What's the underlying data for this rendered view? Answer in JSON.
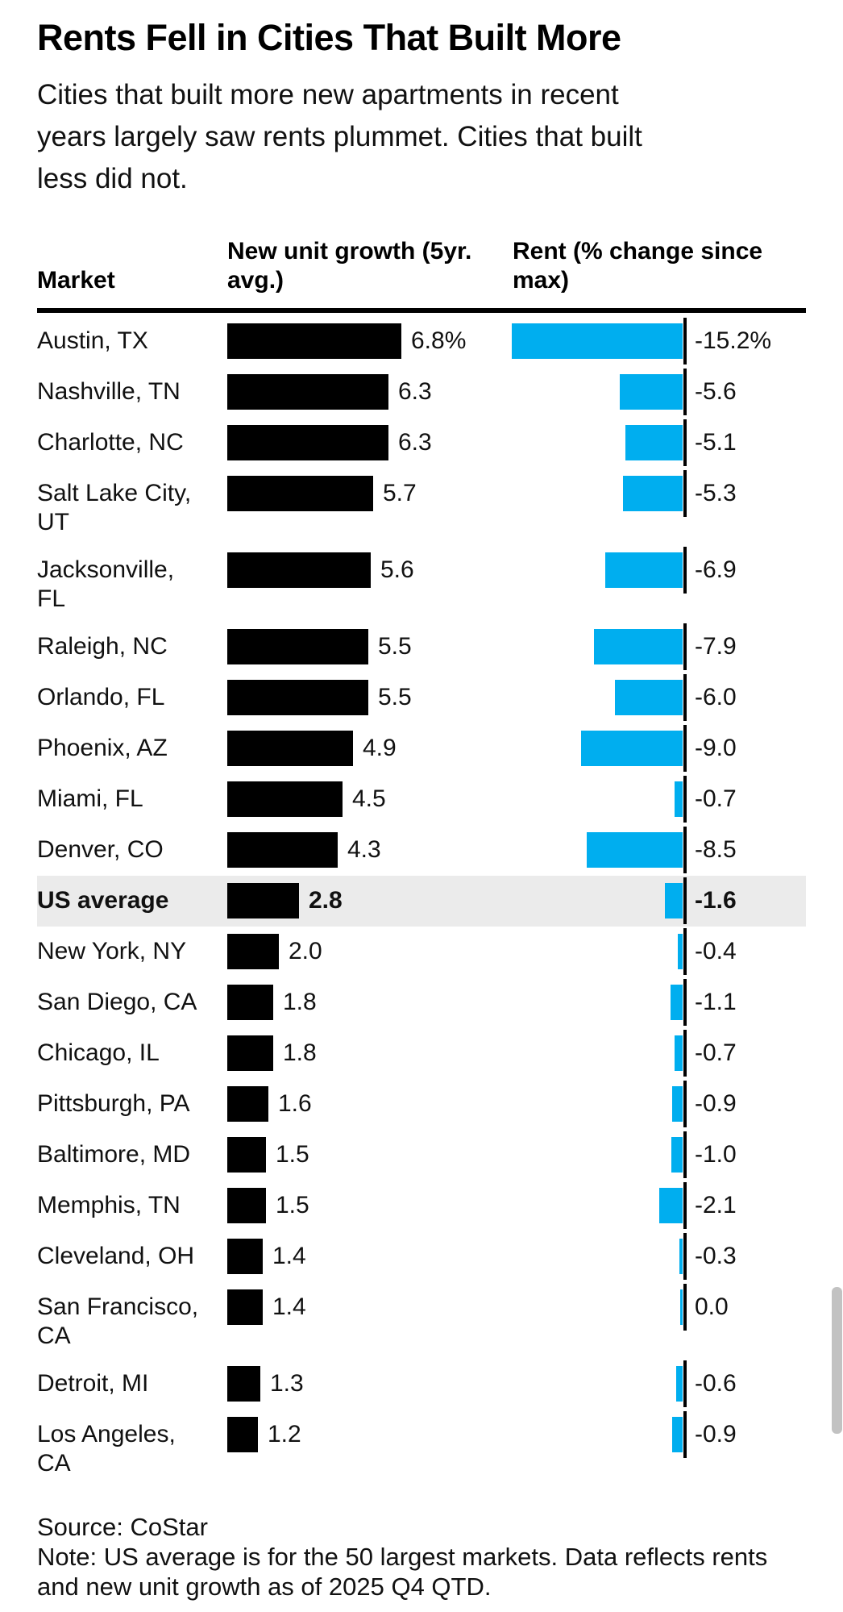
{
  "title": "Rents Fell in Cities That Built More",
  "subtitle": "Cities that built more new apartments in recent\nyears largely saw rents plummet. Cities that built\nless did not.",
  "table": {
    "headers": {
      "market": "Market",
      "growth": "New unit growth (5yr.\navg.)",
      "rent": "Rent (% change since\nmax)"
    }
  },
  "chart_data": {
    "type": "bar",
    "orientation": "horizontal",
    "series": [
      {
        "name": "New unit growth (5yr. avg.)",
        "color": "#000000",
        "unit": "%",
        "axis_range": [
          0,
          6.8
        ]
      },
      {
        "name": "Rent (% change since max)",
        "color": "#00aeef",
        "unit": "%",
        "axis_range": [
          -15.2,
          0
        ]
      }
    ],
    "rows": [
      {
        "market": "Austin, TX",
        "growth": 6.8,
        "growth_label": "6.8%",
        "rent": -15.2,
        "rent_label": "-15.2%",
        "highlight": false
      },
      {
        "market": "Nashville, TN",
        "growth": 6.3,
        "growth_label": "6.3",
        "rent": -5.6,
        "rent_label": "-5.6",
        "highlight": false
      },
      {
        "market": "Charlotte, NC",
        "growth": 6.3,
        "growth_label": "6.3",
        "rent": -5.1,
        "rent_label": "-5.1",
        "highlight": false
      },
      {
        "market": "Salt Lake City,\nUT",
        "growth": 5.7,
        "growth_label": "5.7",
        "rent": -5.3,
        "rent_label": "-5.3",
        "highlight": false
      },
      {
        "market": "Jacksonville,\nFL",
        "growth": 5.6,
        "growth_label": "5.6",
        "rent": -6.9,
        "rent_label": "-6.9",
        "highlight": false
      },
      {
        "market": "Raleigh, NC",
        "growth": 5.5,
        "growth_label": "5.5",
        "rent": -7.9,
        "rent_label": "-7.9",
        "highlight": false
      },
      {
        "market": "Orlando, FL",
        "growth": 5.5,
        "growth_label": "5.5",
        "rent": -6.0,
        "rent_label": "-6.0",
        "highlight": false
      },
      {
        "market": "Phoenix, AZ",
        "growth": 4.9,
        "growth_label": "4.9",
        "rent": -9.0,
        "rent_label": "-9.0",
        "highlight": false
      },
      {
        "market": "Miami, FL",
        "growth": 4.5,
        "growth_label": "4.5",
        "rent": -0.7,
        "rent_label": "-0.7",
        "highlight": false
      },
      {
        "market": "Denver, CO",
        "growth": 4.3,
        "growth_label": "4.3",
        "rent": -8.5,
        "rent_label": "-8.5",
        "highlight": false
      },
      {
        "market": "US average",
        "growth": 2.8,
        "growth_label": "2.8",
        "rent": -1.6,
        "rent_label": "-1.6",
        "highlight": true
      },
      {
        "market": "New York, NY",
        "growth": 2.0,
        "growth_label": "2.0",
        "rent": -0.4,
        "rent_label": "-0.4",
        "highlight": false
      },
      {
        "market": "San Diego, CA",
        "growth": 1.8,
        "growth_label": "1.8",
        "rent": -1.1,
        "rent_label": "-1.1",
        "highlight": false
      },
      {
        "market": "Chicago, IL",
        "growth": 1.8,
        "growth_label": "1.8",
        "rent": -0.7,
        "rent_label": "-0.7",
        "highlight": false
      },
      {
        "market": "Pittsburgh, PA",
        "growth": 1.6,
        "growth_label": "1.6",
        "rent": -0.9,
        "rent_label": "-0.9",
        "highlight": false
      },
      {
        "market": "Baltimore, MD",
        "growth": 1.5,
        "growth_label": "1.5",
        "rent": -1.0,
        "rent_label": "-1.0",
        "highlight": false
      },
      {
        "market": "Memphis, TN",
        "growth": 1.5,
        "growth_label": "1.5",
        "rent": -2.1,
        "rent_label": "-2.1",
        "highlight": false
      },
      {
        "market": "Cleveland, OH",
        "growth": 1.4,
        "growth_label": "1.4",
        "rent": -0.3,
        "rent_label": "-0.3",
        "highlight": false
      },
      {
        "market": "San Francisco,\nCA",
        "growth": 1.4,
        "growth_label": "1.4",
        "rent": 0.0,
        "rent_label": "0.0",
        "highlight": false
      },
      {
        "market": "Detroit, MI",
        "growth": 1.3,
        "growth_label": "1.3",
        "rent": -0.6,
        "rent_label": "-0.6",
        "highlight": false
      },
      {
        "market": "Los Angeles,\nCA",
        "growth": 1.2,
        "growth_label": "1.2",
        "rent": -0.9,
        "rent_label": "-0.9",
        "highlight": false
      }
    ]
  },
  "footer": {
    "source": "Source: CoStar",
    "note": "Note: US average is for the 50 largest markets. Data reflects rents\nand new unit growth as of 2025 Q4 QTD."
  },
  "colors": {
    "growth_bar": "#000000",
    "rent_bar": "#00aeef",
    "highlight_row_bg": "#ebebeb",
    "header_rule": "#000000",
    "scrollbar": "#c2c2c2"
  }
}
